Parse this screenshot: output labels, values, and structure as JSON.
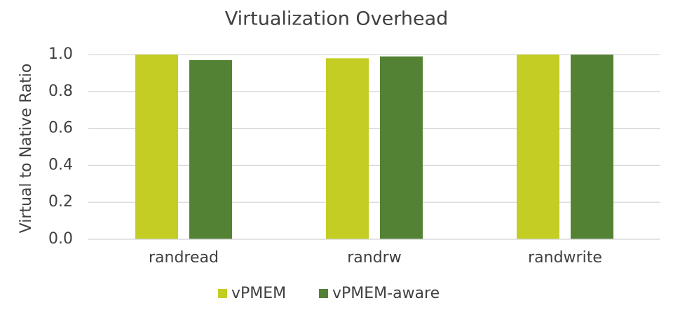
{
  "chart_data": {
    "type": "bar",
    "title": "Virtualization Overhead",
    "y_label": "Virtual to Native Ratio",
    "categories": [
      "randread",
      "randrw",
      "randwrite"
    ],
    "series": [
      {
        "name": "vPMEM",
        "color": "#c3cd23",
        "values": [
          1.0,
          0.98,
          1.0
        ]
      },
      {
        "name": "vPMEM-aware",
        "color": "#548235",
        "values": [
          0.97,
          0.99,
          1.0
        ]
      }
    ],
    "ylim": [
      0,
      1.0
    ],
    "yticks": [
      {
        "value": 0,
        "label": "0.0"
      },
      0.2,
      0.4,
      0.6,
      0.8,
      {
        "value": 1.0,
        "label": "1.0"
      }
    ],
    "grid": true,
    "legend": "bottom"
  }
}
